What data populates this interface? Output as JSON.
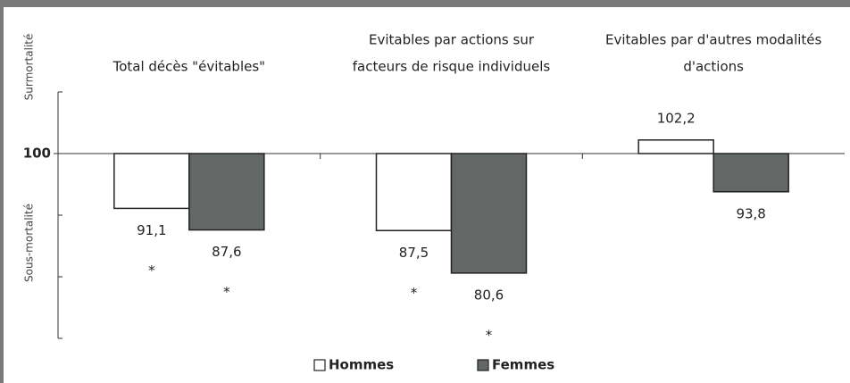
{
  "chart_data": {
    "type": "bar",
    "categories": [
      [
        "Total décès \"évitables\""
      ],
      [
        "Evitables par actions sur",
        "facteurs de risque individuels"
      ],
      [
        "Evitables par d'autres modalités",
        "d'actions"
      ]
    ],
    "series": [
      {
        "name": "Hommes",
        "color": "#ffffff",
        "values": [
          91.1,
          87.5,
          102.2
        ],
        "value_labels": [
          "91,1",
          "87,5",
          "102,2"
        ],
        "markers": [
          "*",
          "*",
          null
        ]
      },
      {
        "name": "Femmes",
        "color": "#636866",
        "values": [
          87.6,
          80.6,
          93.8
        ],
        "value_labels": [
          "87,6",
          "80,6",
          "93,8"
        ],
        "markers": [
          "*",
          "*",
          null
        ]
      }
    ],
    "ylim": [
      70,
      110
    ],
    "yticks": [
      70,
      80,
      90,
      110
    ],
    "baseline": 100,
    "upper_label": "Surmortalité",
    "lower_label": "Sous-mortalité",
    "legend": "bottom"
  }
}
